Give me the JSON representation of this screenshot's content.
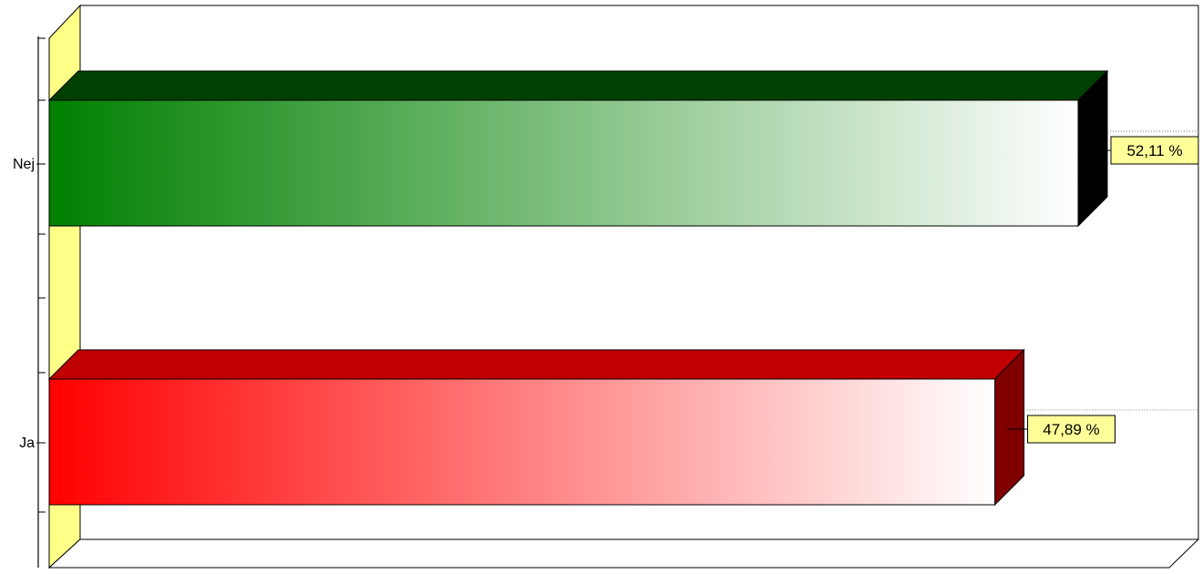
{
  "chart_data": {
    "type": "bar",
    "orientation": "horizontal",
    "three_d": true,
    "categories": [
      "Nej",
      "Ja"
    ],
    "values": [
      52.11,
      47.89
    ],
    "value_labels": [
      "52,11 %",
      "47,89 %"
    ],
    "xlim": [
      0,
      56.5
    ],
    "colors": {
      "Nej": {
        "front": "#008000",
        "top": "#004000",
        "side": "#000000"
      },
      "Ja": {
        "front": "#ff0000",
        "top": "#c00000",
        "side": "#800000"
      }
    },
    "wall_color": "#ffff88",
    "label_bg": "#ffff99",
    "grid": false,
    "legend": "none"
  }
}
